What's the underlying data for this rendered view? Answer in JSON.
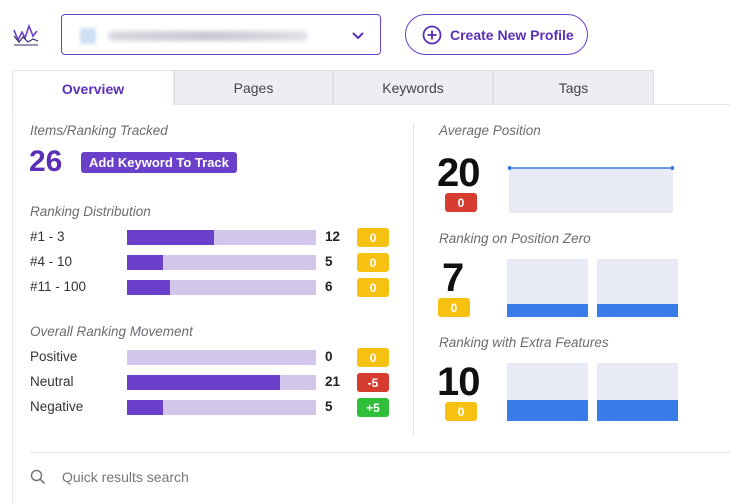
{
  "header": {
    "create_profile_label": "Create New Profile"
  },
  "tabs": [
    {
      "label": "Overview",
      "active": true
    },
    {
      "label": "Pages",
      "active": false
    },
    {
      "label": "Keywords",
      "active": false
    },
    {
      "label": "Tags",
      "active": false
    }
  ],
  "left": {
    "items_tracked_label": "Items/Ranking Tracked",
    "items_tracked_value": "26",
    "add_keyword_label": "Add Keyword To Track",
    "distribution_label": "Ranking Distribution",
    "distribution": [
      {
        "label": "#1 - 3",
        "count": "12",
        "fill": 0.46,
        "badge": "0",
        "badge_color": "yellow"
      },
      {
        "label": "#4 - 10",
        "count": "5",
        "fill": 0.19,
        "badge": "0",
        "badge_color": "yellow"
      },
      {
        "label": "#11 - 100",
        "count": "6",
        "fill": 0.23,
        "badge": "0",
        "badge_color": "yellow"
      }
    ],
    "movement_label": "Overall Ranking Movement",
    "movement": [
      {
        "label": "Positive",
        "count": "0",
        "fill": 0.0,
        "badge": "0",
        "badge_color": "yellow"
      },
      {
        "label": "Neutral",
        "count": "21",
        "fill": 0.81,
        "badge": "-5",
        "badge_color": "red"
      },
      {
        "label": "Negative",
        "count": "5",
        "fill": 0.19,
        "badge": "+5",
        "badge_color": "green"
      }
    ]
  },
  "right": {
    "avg_position_label": "Average Position",
    "avg_position_value": "20",
    "avg_position_badge": "0",
    "position_zero_label": "Ranking on Position Zero",
    "position_zero_value": "7",
    "position_zero_badge": "0",
    "position_zero_bars": [
      0.22,
      0.22
    ],
    "extra_features_label": "Ranking with Extra Features",
    "extra_features_value": "10",
    "extra_features_badge": "0",
    "extra_features_bars": [
      0.37,
      0.37
    ]
  },
  "search": {
    "placeholder": "Quick results search"
  },
  "colors": {
    "accent": "#6a3fc9",
    "bar_track": "#d2c6ea",
    "badge_yellow": "#f6c111",
    "badge_red": "#d63c2f",
    "badge_green": "#2fbf3a",
    "chart_blue": "#3a7bea"
  },
  "icons": {
    "logo": "chart-logo-icon",
    "dropdown": "chevron-down-icon",
    "create": "plus-circle-icon",
    "search": "search-icon"
  }
}
